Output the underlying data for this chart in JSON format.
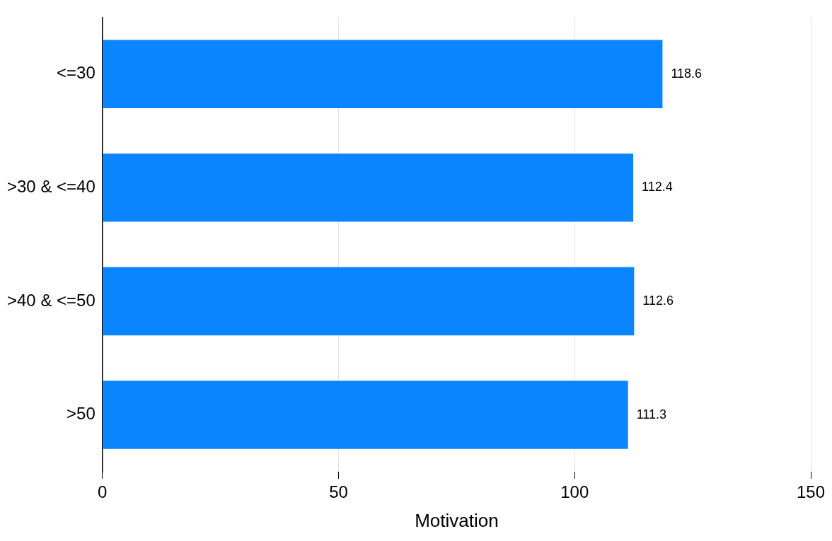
{
  "chart_data": {
    "type": "bar",
    "orientation": "horizontal",
    "xlabel": "Motivation",
    "categories": [
      "<=30",
      ">30 & <=40",
      ">40 & <=50",
      ">50"
    ],
    "values": [
      118.6,
      112.4,
      112.6,
      111.3
    ],
    "color": "#0a84ff",
    "xlim": [
      0,
      150
    ],
    "xticks": [
      0,
      50,
      100,
      150
    ],
    "grid": "x",
    "data_labels": true,
    "legend": false
  }
}
